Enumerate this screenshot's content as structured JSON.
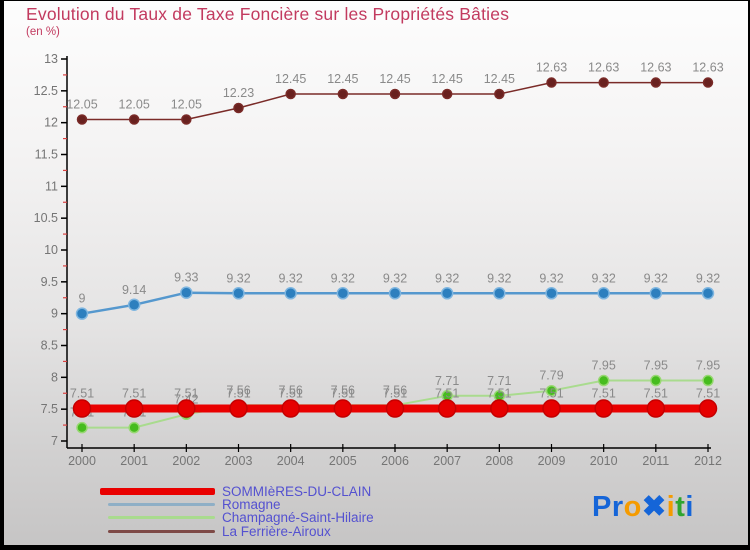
{
  "header": {
    "title": "Evolution du Taux de Taxe Foncière sur les Propriétés Bâties",
    "subtitle": "(en %)"
  },
  "colors": {
    "title": "#C23A5F",
    "legend_text": "#5451D0",
    "data_label": "#8A8A8A",
    "axis_text": "#757575",
    "axis_line": "#000000",
    "minor_tick": "#D94040"
  },
  "chart_data": {
    "type": "line",
    "title": "Evolution du Taux de Taxe Foncière sur les Propriétés Bâties",
    "subtitle": "(en %)",
    "xlabel": "",
    "ylabel": "",
    "x": [
      2000,
      2001,
      2002,
      2003,
      2004,
      2005,
      2006,
      2007,
      2008,
      2009,
      2010,
      2011,
      2012
    ],
    "ylim": [
      7,
      13
    ],
    "y_ticks": [
      7,
      7.5,
      8,
      8.5,
      9,
      9.5,
      10,
      10.5,
      11,
      11.5,
      12,
      12.5,
      13
    ],
    "y_minor_step": 0.25,
    "grid": false,
    "data_labels": true,
    "legend_position": "bottom-left",
    "series": [
      {
        "name": "SOMMIèRES-DU-CLAIN",
        "color": "#E90000",
        "marker_color": "#E60000",
        "marker_stroke": "#C40000",
        "line_width": 8,
        "marker_radius": 8.5,
        "values": [
          7.51,
          7.51,
          7.51,
          7.51,
          7.51,
          7.51,
          7.51,
          7.51,
          7.51,
          7.51,
          7.51,
          7.51,
          7.51
        ]
      },
      {
        "name": "Romagne",
        "color": "#5598CE",
        "marker_color": "#2D7FBE",
        "marker_stroke": "#7FB6E0",
        "line_width": 2.5,
        "marker_radius": 5.5,
        "values": [
          9,
          9.14,
          9.33,
          9.32,
          9.32,
          9.32,
          9.32,
          9.32,
          9.32,
          9.32,
          9.32,
          9.32,
          9.32
        ]
      },
      {
        "name": "Champagné-Saint-Hilaire",
        "color": "#A9DB8E",
        "marker_color": "#46BC1E",
        "marker_stroke": "#98D873",
        "line_width": 2,
        "marker_radius": 5,
        "values": [
          7.21,
          7.21,
          7.42,
          7.56,
          7.56,
          7.56,
          7.56,
          7.71,
          7.71,
          7.79,
          7.95,
          7.95,
          7.95
        ]
      },
      {
        "name": "La Ferrière-Airoux",
        "color": "#7A2B28",
        "marker_color": "#69211F",
        "marker_stroke": "#7A2B28",
        "line_width": 1.5,
        "marker_radius": 4.5,
        "values": [
          12.05,
          12.05,
          12.05,
          12.23,
          12.45,
          12.45,
          12.45,
          12.45,
          12.45,
          12.63,
          12.63,
          12.63,
          12.63
        ]
      }
    ]
  },
  "legend": {
    "items": [
      {
        "label": "SOMMIèRES-DU-CLAIN",
        "color": "#E90000",
        "thickness": 7,
        "length": 115,
        "indent": 0
      },
      {
        "label": "Romagne",
        "color": "#8FAFC6",
        "thickness": 3,
        "length": 107,
        "indent": 8
      },
      {
        "label": "Champagné-Saint-Hilaire",
        "color": "#A9DB8E",
        "thickness": 3,
        "length": 107,
        "indent": 8
      },
      {
        "label": "La Ferrière-Airoux",
        "color": "#7E4A47",
        "thickness": 3,
        "length": 107,
        "indent": 8
      }
    ]
  },
  "logo": {
    "text": "Proxiti",
    "letters": [
      {
        "ch": "P",
        "color": "#1565D8"
      },
      {
        "ch": "r",
        "color": "#1565D8"
      },
      {
        "ch": "o",
        "color": "#F59B00"
      },
      {
        "ch": "✖",
        "color": "#1565D8"
      },
      {
        "ch": "i",
        "color": "#F59B00"
      },
      {
        "ch": "t",
        "color": "#2FA52F"
      },
      {
        "ch": "i",
        "color": "#1565D8"
      }
    ]
  }
}
